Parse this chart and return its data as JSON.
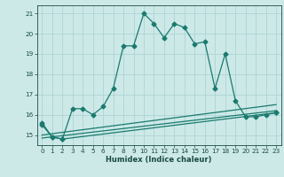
{
  "xlabel": "Humidex (Indice chaleur)",
  "background_color": "#cce9e8",
  "grid_color": "#aed4d3",
  "line_color": "#1a7a6e",
  "xlim_min": -0.5,
  "xlim_max": 23.5,
  "ylim_min": 14.5,
  "ylim_max": 21.4,
  "yticks": [
    15,
    16,
    17,
    18,
    19,
    20,
    21
  ],
  "xticks": [
    0,
    1,
    2,
    3,
    4,
    5,
    6,
    7,
    8,
    9,
    10,
    11,
    12,
    13,
    14,
    15,
    16,
    17,
    18,
    19,
    20,
    21,
    22,
    23
  ],
  "series1_x": [
    0,
    1,
    2,
    3,
    4,
    5,
    6,
    7,
    8,
    9,
    10,
    11,
    12,
    13,
    14,
    15,
    16,
    17,
    18,
    19,
    20,
    21,
    22,
    23
  ],
  "series1_y": [
    15.6,
    14.9,
    14.8,
    16.3,
    16.3,
    16.0,
    16.4,
    17.3,
    19.4,
    19.4,
    21.0,
    20.5,
    19.8,
    20.5,
    20.3,
    19.5,
    19.6,
    17.3,
    19.0,
    16.7,
    15.9,
    15.9,
    16.0,
    16.1
  ],
  "series2_x": [
    0,
    1,
    2,
    23
  ],
  "series2_y": [
    15.5,
    14.9,
    14.8,
    16.1
  ],
  "series3_x": [
    0,
    23
  ],
  "series3_y": [
    15.0,
    16.5
  ],
  "series4_x": [
    0,
    23
  ],
  "series4_y": [
    14.85,
    16.2
  ],
  "markersize": 2.5,
  "linewidth": 0.9,
  "tick_labelsize": 5.2,
  "xlabel_fontsize": 6.0
}
